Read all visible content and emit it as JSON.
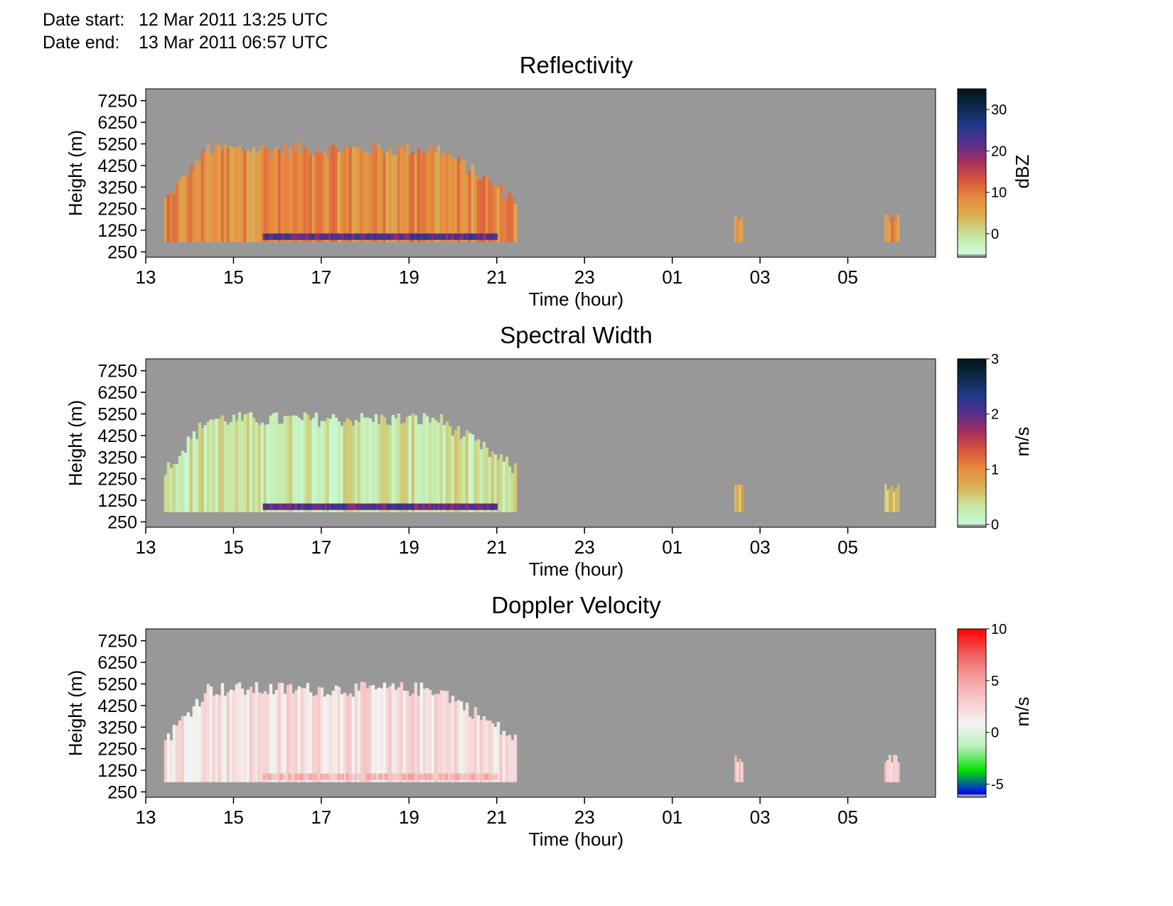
{
  "header": {
    "start_label": "Date start:",
    "start_value": "12 Mar 2011 13:25 UTC",
    "end_label": "Date end:",
    "end_value": "13 Mar 2011 06:57 UTC"
  },
  "colors": {
    "background_no_data": "#989898",
    "reflectivity_scale": [
      "#cffde0",
      "#c8e6a0",
      "#d7b356",
      "#e88b3e",
      "#d9583e",
      "#a8305a",
      "#5a2f8c",
      "#203a8a",
      "#0d2a4a",
      "#021417"
    ],
    "width_scale": [
      "#c6fbd8",
      "#c8e6a0",
      "#d7b356",
      "#e88b3e",
      "#d9583e",
      "#a8305a",
      "#5a2f8c",
      "#203a8a",
      "#0d2a4a",
      "#021417"
    ],
    "velocity_scale": [
      "#0000ff",
      "#00e000",
      "#b8f0b8",
      "#f4f4f4",
      "#f6c8c8",
      "#f59a9a",
      "#f05858",
      "#ff0000"
    ]
  },
  "chart_data": [
    {
      "type": "heatmap",
      "title": "Reflectivity",
      "xlabel": "Time (hour)",
      "ylabel": "Height (m)",
      "x_ticks": [
        "13",
        "15",
        "17",
        "19",
        "21",
        "23",
        "01",
        "03",
        "05"
      ],
      "y_ticks": [
        "7250",
        "6250",
        "5250",
        "4250",
        "3250",
        "2250",
        "1250",
        "250"
      ],
      "xlim": [
        "12 Mar 2011 13:00",
        "13 Mar 2011 07:00"
      ],
      "ylim": [
        0,
        7800
      ],
      "colorbar": {
        "label": "dBZ",
        "ticks": [
          "30",
          "20",
          "10",
          "0"
        ],
        "range": [
          -5,
          35
        ]
      },
      "echo_features": [
        {
          "kind": "main_cloud",
          "start": "12 Mar 2011 13:25",
          "end": "12 Mar 2011 21:25",
          "base_m": 700,
          "top_m": 5000,
          "dominant_dbz": 8
        },
        {
          "kind": "low_layer",
          "start": "12 Mar 2011 15:40",
          "end": "12 Mar 2011 21:00",
          "base_m": 800,
          "top_m": 1100,
          "dominant_dbz": 22
        },
        {
          "kind": "small_cell",
          "start": "13 Mar 2011 02:25",
          "end": "13 Mar 2011 02:35",
          "base_m": 700,
          "top_m": 2000,
          "dominant_dbz": 8
        },
        {
          "kind": "small_cell",
          "start": "13 Mar 2011 05:50",
          "end": "13 Mar 2011 06:10",
          "base_m": 700,
          "top_m": 2000,
          "dominant_dbz": 8
        }
      ]
    },
    {
      "type": "heatmap",
      "title": "Spectral Width",
      "xlabel": "Time (hour)",
      "ylabel": "Height (m)",
      "x_ticks": [
        "13",
        "15",
        "17",
        "19",
        "21",
        "23",
        "01",
        "03",
        "05"
      ],
      "y_ticks": [
        "7250",
        "6250",
        "5250",
        "4250",
        "3250",
        "2250",
        "1250",
        "250"
      ],
      "xlim": [
        "12 Mar 2011 13:00",
        "13 Mar 2011 07:00"
      ],
      "ylim": [
        0,
        7800
      ],
      "colorbar": {
        "label": "m/s",
        "ticks": [
          "3",
          "2",
          "1",
          "0"
        ],
        "range": [
          0,
          3
        ]
      },
      "echo_features": [
        {
          "kind": "main_cloud",
          "start": "12 Mar 2011 13:25",
          "end": "12 Mar 2011 21:25",
          "base_m": 700,
          "top_m": 5000,
          "dominant_ms": 0.3
        },
        {
          "kind": "low_layer",
          "start": "12 Mar 2011 15:40",
          "end": "12 Mar 2011 21:00",
          "base_m": 800,
          "top_m": 1100,
          "dominant_ms": 2.0
        },
        {
          "kind": "small_cell",
          "start": "13 Mar 2011 02:25",
          "end": "13 Mar 2011 02:35",
          "base_m": 700,
          "top_m": 2000,
          "dominant_ms": 0.6
        },
        {
          "kind": "small_cell",
          "start": "13 Mar 2011 05:50",
          "end": "13 Mar 2011 06:10",
          "base_m": 700,
          "top_m": 2000,
          "dominant_ms": 0.6
        }
      ]
    },
    {
      "type": "heatmap",
      "title": "Doppler Velocity",
      "xlabel": "Time (hour)",
      "ylabel": "Height (m)",
      "x_ticks": [
        "13",
        "15",
        "17",
        "19",
        "21",
        "23",
        "01",
        "03",
        "05"
      ],
      "y_ticks": [
        "7250",
        "6250",
        "5250",
        "4250",
        "3250",
        "2250",
        "1250",
        "250"
      ],
      "xlim": [
        "12 Mar 2011 13:00",
        "13 Mar 2011 07:00"
      ],
      "ylim": [
        0,
        7800
      ],
      "colorbar": {
        "label": "m/s",
        "ticks": [
          "10",
          "5",
          "0",
          "-5"
        ],
        "range": [
          -6,
          10
        ]
      },
      "echo_features": [
        {
          "kind": "main_cloud",
          "start": "12 Mar 2011 13:25",
          "end": "12 Mar 2011 21:25",
          "base_m": 700,
          "top_m": 5000,
          "dominant_ms": 2
        },
        {
          "kind": "low_layer",
          "start": "12 Mar 2011 15:40",
          "end": "12 Mar 2011 21:00",
          "base_m": 800,
          "top_m": 1100,
          "dominant_ms": 4
        },
        {
          "kind": "small_cell",
          "start": "13 Mar 2011 02:25",
          "end": "13 Mar 2011 02:35",
          "base_m": 700,
          "top_m": 2000,
          "dominant_ms": 3
        },
        {
          "kind": "small_cell",
          "start": "13 Mar 2011 05:50",
          "end": "13 Mar 2011 06:10",
          "base_m": 700,
          "top_m": 2000,
          "dominant_ms": 3
        }
      ]
    }
  ]
}
